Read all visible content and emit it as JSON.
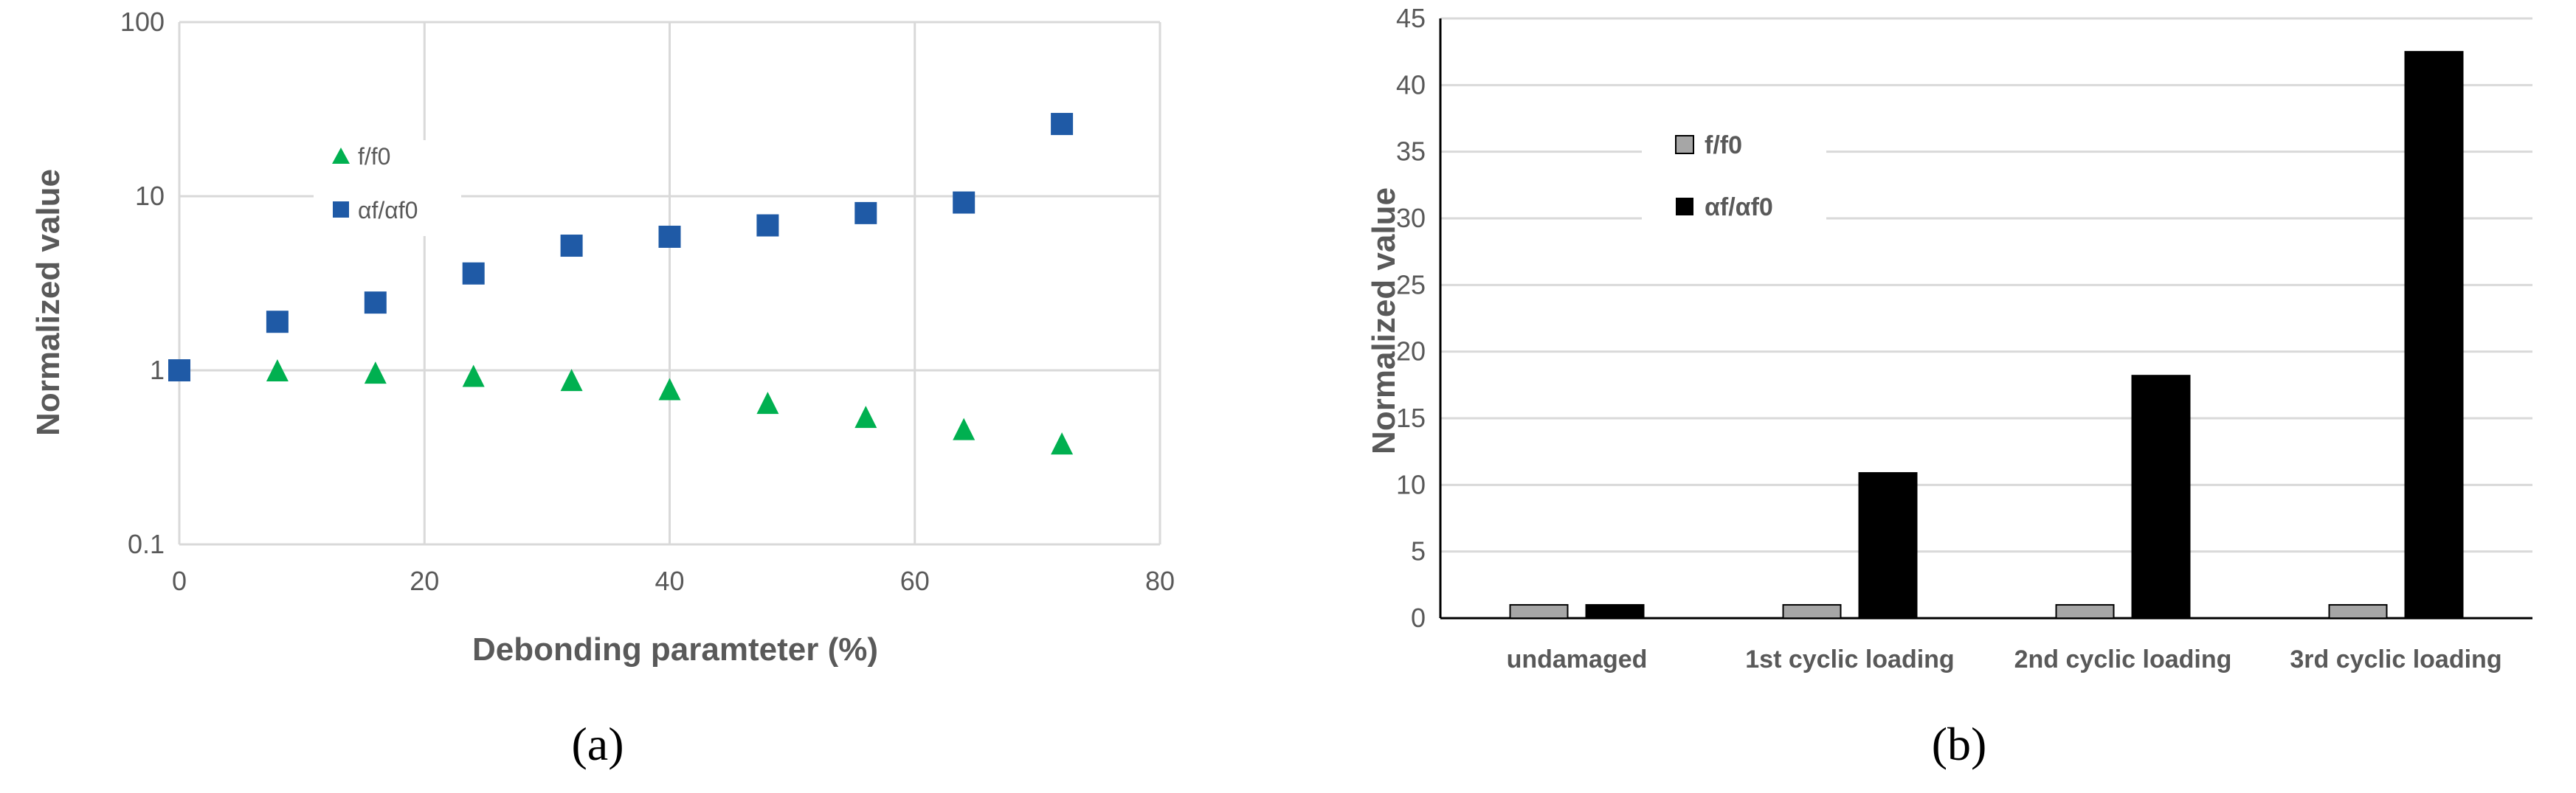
{
  "chart_data": [
    {
      "panel_label": "(a)",
      "type": "scatter",
      "xlabel": "Debonding paramteter (%)",
      "ylabel": "Normalized value",
      "xlim": [
        0,
        80
      ],
      "ylim": [
        0.1,
        100
      ],
      "y_scale": "log",
      "x_ticks": [
        "0",
        "20",
        "40",
        "60",
        "80"
      ],
      "y_ticks": [
        "0.1",
        "1",
        "10",
        "100"
      ],
      "grid": true,
      "legend_position": "upper-left",
      "series": [
        {
          "name": "f/f0",
          "marker": "triangle",
          "color": "#00b050",
          "x": [
            8,
            16,
            24,
            32,
            40,
            48,
            56,
            64,
            72
          ],
          "y": [
            1.0,
            0.97,
            0.93,
            0.88,
            0.78,
            0.65,
            0.54,
            0.46,
            0.38
          ]
        },
        {
          "name": "αf/αf0",
          "marker": "square",
          "color": "#1f5aa6",
          "x": [
            0,
            8,
            16,
            24,
            32,
            40,
            48,
            56,
            64,
            72
          ],
          "y": [
            1.0,
            1.9,
            2.45,
            3.6,
            5.2,
            5.85,
            6.8,
            8.0,
            9.2,
            26.0
          ]
        }
      ]
    },
    {
      "panel_label": "(b)",
      "type": "bar",
      "ylabel": "Normalized value",
      "ylim": [
        0,
        45
      ],
      "y_ticks": [
        "0",
        "5",
        "10",
        "15",
        "20",
        "25",
        "30",
        "35",
        "40",
        "45"
      ],
      "grid": true,
      "legend_position": "upper-left",
      "categories": [
        "undamaged",
        "1st cyclic loading",
        "2nd cyclic loading",
        "3rd cyclic loading"
      ],
      "series": [
        {
          "name": "f/f0",
          "color": "#a6a6a6",
          "values": [
            1.0,
            1.0,
            1.0,
            1.0
          ]
        },
        {
          "name": "αf/αf0",
          "color": "#000000",
          "values": [
            1.0,
            10.9,
            18.2,
            42.5
          ]
        }
      ]
    }
  ]
}
